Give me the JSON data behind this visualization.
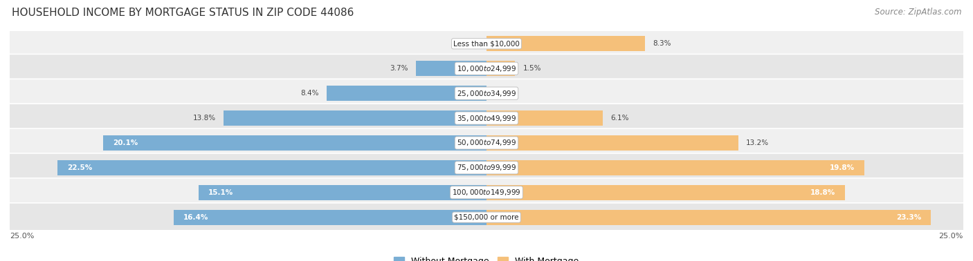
{
  "title": "HOUSEHOLD INCOME BY MORTGAGE STATUS IN ZIP CODE 44086",
  "source": "Source: ZipAtlas.com",
  "categories": [
    "Less than $10,000",
    "$10,000 to $24,999",
    "$25,000 to $34,999",
    "$35,000 to $49,999",
    "$50,000 to $74,999",
    "$75,000 to $99,999",
    "$100,000 to $149,999",
    "$150,000 or more"
  ],
  "without_mortgage": [
    0.0,
    3.7,
    8.4,
    13.8,
    20.1,
    22.5,
    15.1,
    16.4
  ],
  "with_mortgage": [
    8.3,
    1.5,
    0.0,
    6.1,
    13.2,
    19.8,
    18.8,
    23.3
  ],
  "color_without": "#7aaed4",
  "color_with": "#f5c07a",
  "row_colors": [
    "#f0f0f0",
    "#e6e6e6"
  ],
  "xlim": 25.0,
  "title_fontsize": 11,
  "source_fontsize": 8.5,
  "label_fontsize": 7.5,
  "tick_fontsize": 8,
  "legend_fontsize": 9,
  "bar_height": 0.62,
  "background_color": "#ffffff",
  "inside_label_threshold": 14.0
}
